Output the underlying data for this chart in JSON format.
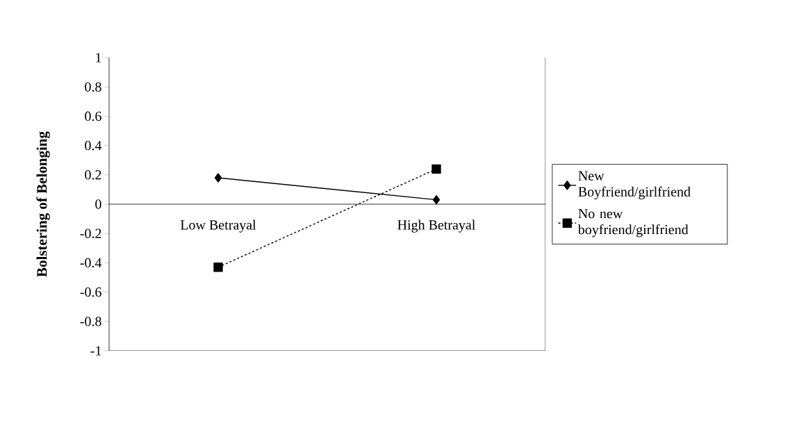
{
  "chart_data": {
    "type": "line",
    "ylabel": "Bolstering of Belonging",
    "categories": [
      "Low Betrayal",
      "High Betrayal"
    ],
    "series": [
      {
        "name": "New Boyfriend/girlfriend",
        "color": "#000000",
        "values": [
          0.18,
          0.03
        ],
        "marker": "diamond",
        "line_style": "solid"
      },
      {
        "name": "No new boyfriend/girlfriend",
        "color": "#000000",
        "values": [
          -0.43,
          0.24
        ],
        "marker": "square",
        "line_style": "dashed"
      }
    ],
    "ylim": [
      -1,
      1
    ],
    "yticks": [
      -1,
      -0.8,
      -0.6,
      -0.4,
      -0.2,
      0,
      0.2,
      0.4,
      0.6,
      0.8,
      1
    ],
    "grid": false,
    "legend": "right"
  }
}
